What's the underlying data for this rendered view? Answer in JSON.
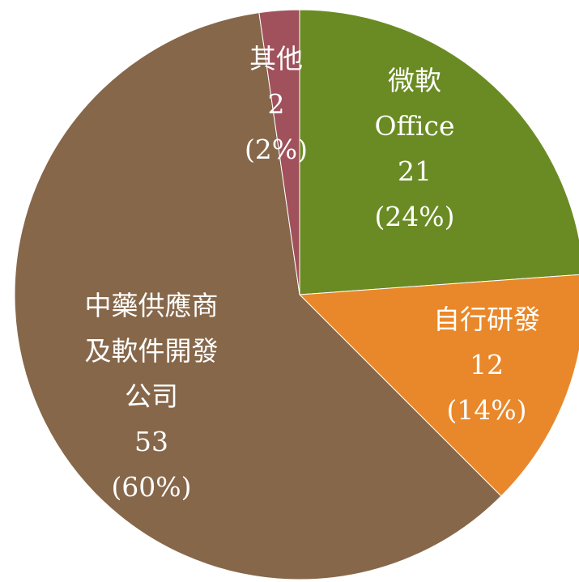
{
  "chart_data": {
    "type": "pie",
    "categories": [
      "微軟\nOffice",
      "自行研發",
      "中藥供應商\n及軟件開發\n公司",
      "其他"
    ],
    "values": [
      21,
      12,
      53,
      2
    ],
    "percent_labels": [
      "(24%)",
      "(14%)",
      "(60%)",
      "(2%)"
    ],
    "colors": [
      "#6a8b23",
      "#e8882a",
      "#86674a",
      "#a0515b"
    ]
  }
}
